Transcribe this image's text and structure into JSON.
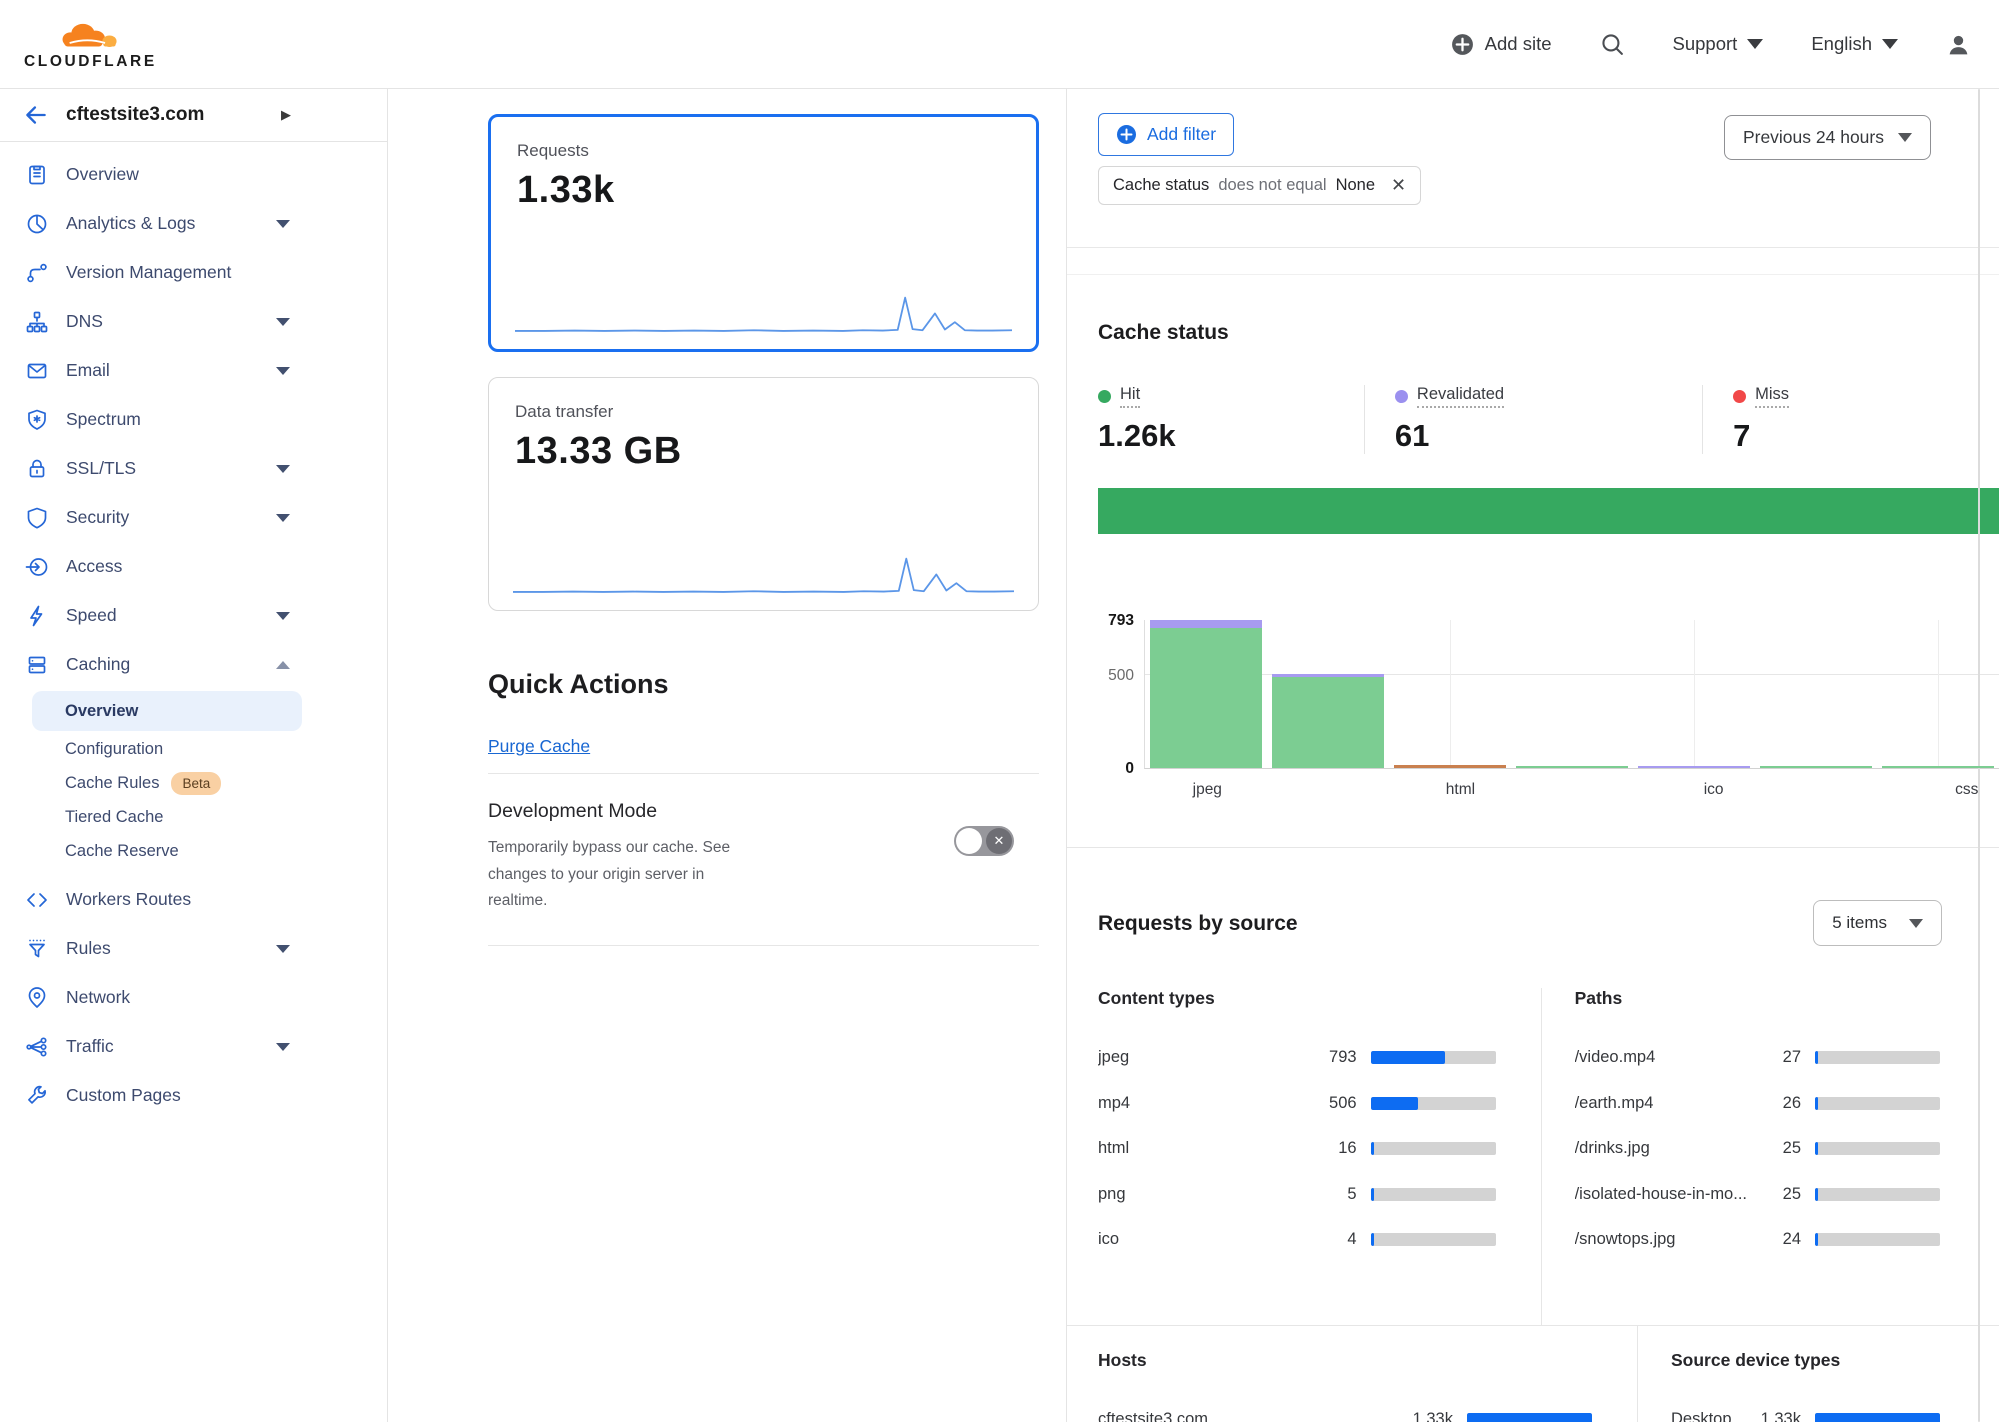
{
  "colors": {
    "accent_blue": "#0d6cf2",
    "link_blue": "#1a6ce0",
    "selected_card_border": "#1a6ff0",
    "hit_green": "#36a960",
    "revalidated_purple": "#9b90ef",
    "miss_red": "#f14848",
    "chart_green": "#7ccd92",
    "chart_purple_cap": "#a79bf0",
    "chart_orange": "#c9804f",
    "bar_track_gray": "#d3d3d3"
  },
  "header": {
    "logo_text": "CLOUDFLARE",
    "add_site": "Add site",
    "support": "Support",
    "language": "English"
  },
  "sidebar": {
    "site_name": "cftestsite3.com",
    "items_top": [
      {
        "label": "Overview",
        "icon": "overview",
        "caret": false
      },
      {
        "label": "Analytics & Logs",
        "icon": "analytics",
        "caret": true
      },
      {
        "label": "Version Management",
        "icon": "version-management",
        "caret": false
      },
      {
        "label": "DNS",
        "icon": "dns",
        "caret": true
      },
      {
        "label": "Email",
        "icon": "email",
        "caret": true
      },
      {
        "label": "Spectrum",
        "icon": "spectrum",
        "caret": false
      },
      {
        "label": "SSL/TLS",
        "icon": "ssl-tls",
        "caret": true
      },
      {
        "label": "Security",
        "icon": "security",
        "caret": true
      },
      {
        "label": "Access",
        "icon": "access",
        "caret": false
      },
      {
        "label": "Speed",
        "icon": "speed",
        "caret": true
      },
      {
        "label": "Caching",
        "icon": "caching",
        "caret": "expanded"
      }
    ],
    "caching_sub": [
      {
        "label": "Overview",
        "selected": true
      },
      {
        "label": "Configuration"
      },
      {
        "label": "Cache Rules",
        "badge": "Beta"
      },
      {
        "label": "Tiered Cache"
      },
      {
        "label": "Cache Reserve"
      }
    ],
    "items_bottom": [
      {
        "label": "Workers Routes",
        "icon": "workers-routes",
        "caret": false
      },
      {
        "label": "Rules",
        "icon": "rules",
        "caret": true
      },
      {
        "label": "Network",
        "icon": "network",
        "caret": false
      },
      {
        "label": "Traffic",
        "icon": "traffic",
        "caret": true
      },
      {
        "label": "Custom Pages",
        "icon": "custom-pages",
        "caret": false
      }
    ]
  },
  "metric_cards": [
    {
      "label": "Requests",
      "value": "1.33k",
      "selected": true
    },
    {
      "label": "Data transfer",
      "value": "13.33 GB",
      "selected": false
    }
  ],
  "quick_actions": {
    "title": "Quick Actions",
    "purge_cache": "Purge Cache",
    "dev_mode": {
      "title": "Development Mode",
      "description": "Temporarily bypass our cache. See changes to your origin server in realtime.",
      "state": "off"
    }
  },
  "filter_bar": {
    "add_filter": "Add filter",
    "chip_field": "Cache status",
    "chip_operator": "does not equal",
    "chip_value": "None",
    "time_range": "Previous 24 hours"
  },
  "cache_status": {
    "title": "Cache status",
    "stats": [
      {
        "label": "Hit",
        "value": "1.26k",
        "color": "#36a960"
      },
      {
        "label": "Revalidated",
        "value": "61",
        "color": "#9b90ef"
      },
      {
        "label": "Miss",
        "value": "7",
        "color": "#f14848"
      }
    ]
  },
  "requests_by_source": {
    "title": "Requests by source",
    "items_selector": "5 items",
    "groups": [
      {
        "title": "Content types",
        "rows": [
          {
            "label": "jpeg",
            "value": "793",
            "pct": 59.5
          },
          {
            "label": "mp4",
            "value": "506",
            "pct": 38
          },
          {
            "label": "html",
            "value": "16",
            "pct": 1.2
          },
          {
            "label": "png",
            "value": "5",
            "pct": 0.5
          },
          {
            "label": "ico",
            "value": "4",
            "pct": 0.4
          }
        ]
      },
      {
        "title": "Paths",
        "rows": [
          {
            "label": "/video.mp4",
            "value": "27",
            "pct": 2.0
          },
          {
            "label": "/earth.mp4",
            "value": "26",
            "pct": 2.0
          },
          {
            "label": "/drinks.jpg",
            "value": "25",
            "pct": 1.9
          },
          {
            "label": "/isolated-house-in-mo...",
            "value": "25",
            "pct": 1.9
          },
          {
            "label": "/snowtops.jpg",
            "value": "24",
            "pct": 1.8
          }
        ]
      },
      {
        "title": "Hosts",
        "rows": [
          {
            "label": "cftestsite3.com",
            "value": "1.33k",
            "pct": 100
          }
        ]
      },
      {
        "title": "Source device types",
        "rows": [
          {
            "label": "Desktop",
            "value": "1.33k",
            "pct": 100
          }
        ]
      }
    ]
  },
  "chart_data": [
    {
      "type": "line",
      "name": "requests-sparkline",
      "title": "Requests",
      "total_label": "1.33k",
      "x_range": "previous 24 hours",
      "points_norm": [
        [
          0,
          0.05
        ],
        [
          6,
          0.05
        ],
        [
          12,
          0.06
        ],
        [
          18,
          0.05
        ],
        [
          24,
          0.06
        ],
        [
          30,
          0.05
        ],
        [
          36,
          0.06
        ],
        [
          42,
          0.05
        ],
        [
          48,
          0.07
        ],
        [
          54,
          0.05
        ],
        [
          60,
          0.06
        ],
        [
          66,
          0.05
        ],
        [
          70,
          0.07
        ],
        [
          74,
          0.06
        ],
        [
          77,
          0.08
        ],
        [
          78.5,
          1.0
        ],
        [
          80,
          0.1
        ],
        [
          82,
          0.07
        ],
        [
          84.5,
          0.55
        ],
        [
          86.5,
          0.09
        ],
        [
          88.5,
          0.3
        ],
        [
          90.5,
          0.07
        ],
        [
          93,
          0.06
        ],
        [
          96,
          0.06
        ],
        [
          100,
          0.07
        ]
      ]
    },
    {
      "type": "line",
      "name": "data-transfer-sparkline",
      "title": "Data transfer",
      "total_label": "13.33 GB",
      "x_range": "previous 24 hours",
      "points_norm": [
        [
          0,
          0.05
        ],
        [
          6,
          0.05
        ],
        [
          12,
          0.06
        ],
        [
          18,
          0.05
        ],
        [
          24,
          0.06
        ],
        [
          30,
          0.05
        ],
        [
          36,
          0.06
        ],
        [
          42,
          0.05
        ],
        [
          48,
          0.07
        ],
        [
          54,
          0.05
        ],
        [
          60,
          0.06
        ],
        [
          66,
          0.05
        ],
        [
          70,
          0.07
        ],
        [
          74,
          0.06
        ],
        [
          77,
          0.08
        ],
        [
          78.5,
          1.0
        ],
        [
          80,
          0.1
        ],
        [
          82,
          0.07
        ],
        [
          84.5,
          0.55
        ],
        [
          86.5,
          0.09
        ],
        [
          88.5,
          0.3
        ],
        [
          90.5,
          0.07
        ],
        [
          93,
          0.06
        ],
        [
          96,
          0.06
        ],
        [
          100,
          0.07
        ]
      ]
    },
    {
      "type": "bar",
      "name": "cache-status-share",
      "orientation": "horizontal-stacked",
      "legend": [
        "Hit",
        "Revalidated",
        "Miss"
      ],
      "series": [
        {
          "name": "Hit",
          "value": 1260,
          "color": "#36a960"
        },
        {
          "name": "Revalidated",
          "value": 61,
          "color": "#9b90ef"
        },
        {
          "name": "Miss",
          "value": 7,
          "color": "#f14848"
        }
      ]
    },
    {
      "type": "bar",
      "name": "cache-status-by-content-type",
      "ylim": [
        0,
        793
      ],
      "yticks": [
        0,
        500,
        793
      ],
      "x_tick_labels": [
        "jpeg",
        "html",
        "ico",
        "css"
      ],
      "bars": [
        {
          "label": "jpeg",
          "value": 793,
          "hit": 751,
          "revalidated": 42,
          "color": "#7ccd92",
          "cap_color": "#a79bf0"
        },
        {
          "label": "",
          "value": 506,
          "hit": 487,
          "revalidated": 19,
          "color": "#7ccd92",
          "cap_color": "#a79bf0"
        },
        {
          "label": "html",
          "value": 16,
          "color": "#c9804f"
        },
        {
          "label": "",
          "value": 5,
          "color": "#7ccd92"
        },
        {
          "label": "ico",
          "value": 4,
          "color": "#a79bf0"
        },
        {
          "label": "",
          "value": 2,
          "color": "#7ccd92"
        },
        {
          "label": "css",
          "value": 1,
          "color": "#7ccd92"
        }
      ]
    }
  ]
}
